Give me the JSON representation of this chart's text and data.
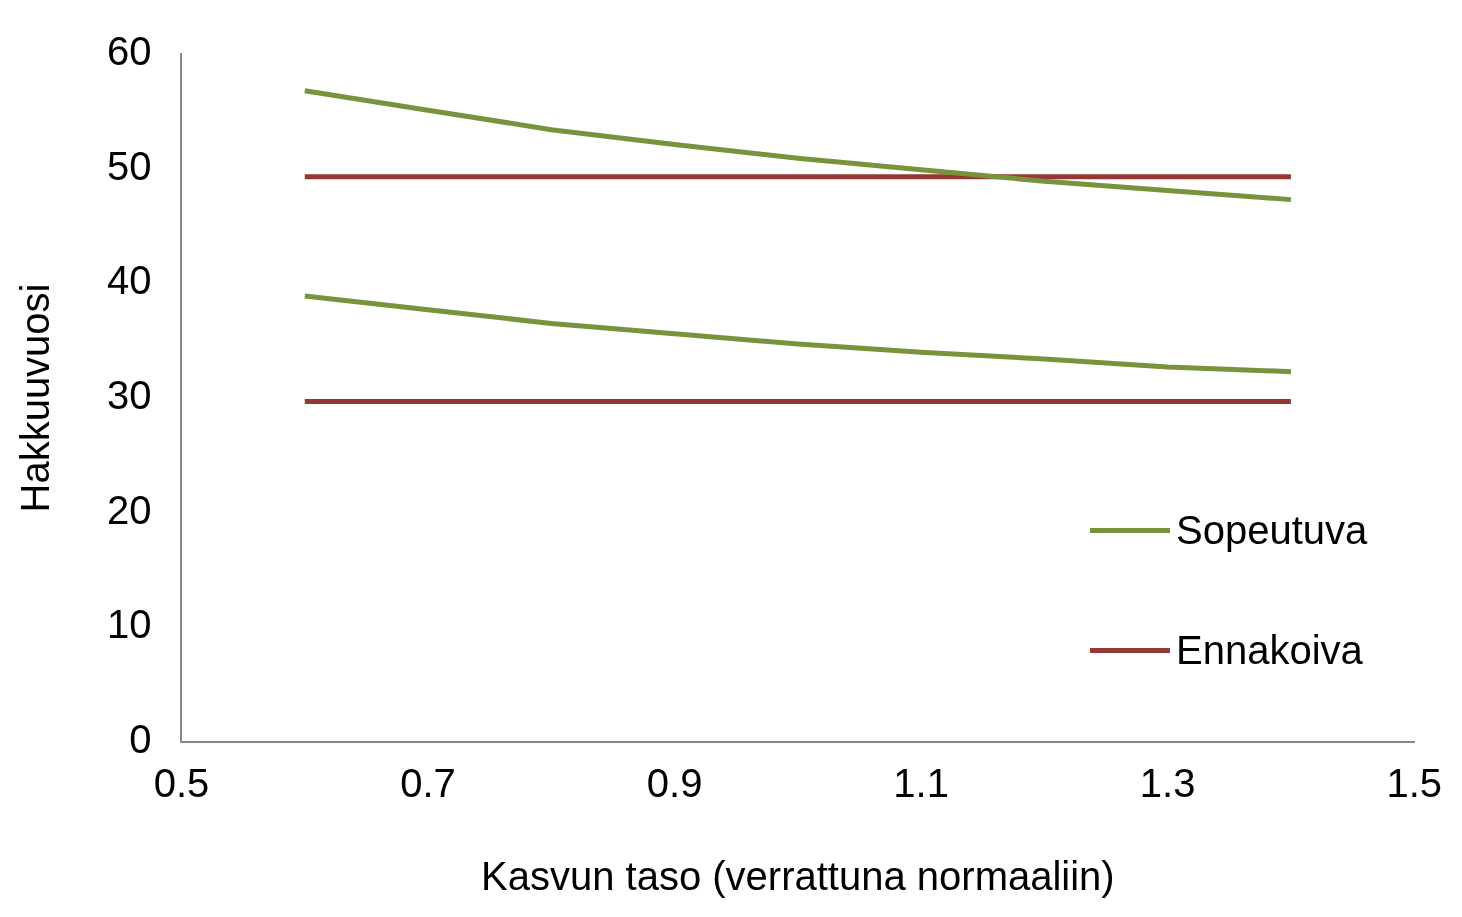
{
  "chart_data": {
    "type": "line",
    "xlabel": "Kasvun taso (verrattuna normaaliin)",
    "ylabel": "Hakkuuvuosi",
    "xlim": [
      0.5,
      1.5
    ],
    "xticks": [
      0.5,
      0.7,
      0.9,
      1.1,
      1.3,
      1.5
    ],
    "ylim": [
      0,
      60
    ],
    "yticks": [
      0,
      10,
      20,
      30,
      40,
      50,
      60
    ],
    "grid": false,
    "legend": "right",
    "marker": "none",
    "line_style": "solid",
    "series": [
      {
        "name": "Sopeutuva",
        "color": "#77933c",
        "x": [
          0.6,
          0.7,
          0.8,
          0.9,
          1.0,
          1.1,
          1.2,
          1.3,
          1.4
        ],
        "values": [
          56.8,
          55.1,
          53.4,
          52.1,
          50.9,
          49.9,
          48.9,
          48.1,
          47.3
        ]
      },
      {
        "color": "#77933c",
        "x": [
          0.6,
          0.7,
          0.8,
          0.9,
          1.0,
          1.1,
          1.2,
          1.3,
          1.4
        ],
        "values": [
          38.9,
          37.7,
          36.5,
          35.6,
          34.7,
          34.0,
          33.4,
          32.7,
          32.3
        ]
      },
      {
        "name": "Ennakoiva",
        "color": "#953735",
        "x": [
          0.6,
          1.4
        ],
        "values": [
          49.3,
          49.3
        ]
      },
      {
        "color": "#953735",
        "x": [
          0.6,
          1.4
        ],
        "values": [
          29.7,
          29.7
        ]
      }
    ]
  }
}
